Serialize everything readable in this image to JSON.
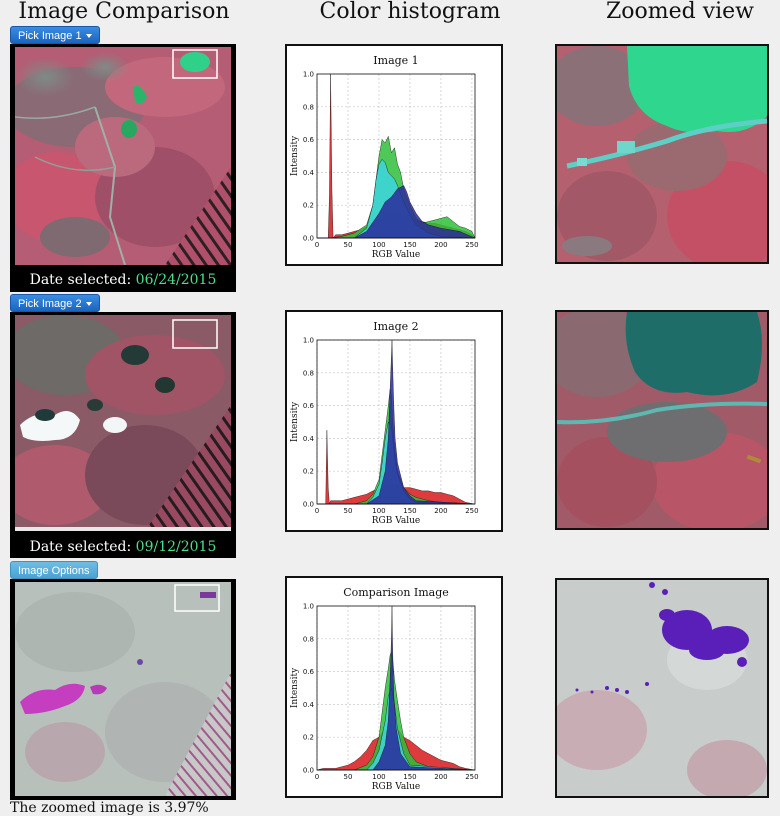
{
  "headers": {
    "comparison": "Image Comparison",
    "histogram": "Color histogram",
    "zoom": "Zoomed view"
  },
  "buttons": {
    "pick1": "Pick Image 1",
    "pick2": "Pick Image 2",
    "options": "Image Options"
  },
  "image1": {
    "date_label": "Date selected:",
    "date_value": "06/24/2015"
  },
  "image2": {
    "date_label": "Date selected:",
    "date_value": "09/12/2015"
  },
  "histograms": [
    {
      "chart_data": {
        "type": "line",
        "title": "Image 1",
        "xlabel": "RGB Value",
        "ylabel": "Intensity",
        "xlim": [
          0,
          255
        ],
        "ylim": [
          0,
          1.0
        ],
        "xticks": [
          0,
          50,
          100,
          150,
          200,
          250
        ],
        "yticks": [
          0.0,
          0.2,
          0.4,
          0.6,
          0.8,
          1.0
        ],
        "series": [
          {
            "color": "#d7191c",
            "x": [
              0,
              10,
              18,
              20,
              22,
              24,
              26,
              30,
              40,
              50,
              60,
              70,
              80,
              90,
              100,
              110,
              120,
              130,
              140,
              150,
              160,
              170,
              180,
              190,
              200,
              210,
              220,
              230,
              240,
              250,
              255
            ],
            "y": [
              0,
              0,
              0,
              0.25,
              1.0,
              0.3,
              0,
              0.02,
              0.02,
              0.03,
              0.04,
              0.05,
              0.07,
              0.09,
              0.12,
              0.14,
              0.15,
              0.14,
              0.13,
              0.12,
              0.11,
              0.1,
              0.09,
              0.09,
              0.08,
              0.07,
              0.06,
              0.05,
              0.04,
              0.02,
              0
            ]
          },
          {
            "color": "#2fbf3a",
            "x": [
              0,
              20,
              40,
              60,
              80,
              90,
              95,
              100,
              105,
              110,
              115,
              120,
              125,
              130,
              135,
              140,
              150,
              160,
              170,
              180,
              190,
              200,
              210,
              220,
              230,
              240,
              250,
              255
            ],
            "y": [
              0,
              0,
              0.01,
              0.03,
              0.08,
              0.2,
              0.35,
              0.5,
              0.6,
              0.58,
              0.62,
              0.52,
              0.55,
              0.45,
              0.4,
              0.3,
              0.2,
              0.12,
              0.09,
              0.1,
              0.11,
              0.12,
              0.13,
              0.1,
              0.07,
              0.06,
              0.04,
              0
            ]
          },
          {
            "color": "#3cd6e0",
            "x": [
              0,
              60,
              80,
              90,
              95,
              100,
              105,
              110,
              115,
              120,
              125,
              130,
              140,
              150,
              160,
              180,
              200,
              255
            ],
            "y": [
              0,
              0,
              0.06,
              0.2,
              0.35,
              0.45,
              0.48,
              0.46,
              0.4,
              0.38,
              0.36,
              0.32,
              0.22,
              0.14,
              0.08,
              0.03,
              0.01,
              0
            ]
          },
          {
            "color": "#2a2a9a",
            "x": [
              0,
              60,
              80,
              100,
              110,
              120,
              130,
              140,
              145,
              150,
              160,
              170,
              180,
              200,
              230,
              255
            ],
            "y": [
              0,
              0,
              0.04,
              0.15,
              0.22,
              0.25,
              0.3,
              0.32,
              0.28,
              0.22,
              0.15,
              0.1,
              0.08,
              0.06,
              0.04,
              0
            ]
          }
        ]
      }
    },
    {
      "chart_data": {
        "type": "line",
        "title": "Image 2",
        "xlabel": "RGB Value",
        "ylabel": "Intensity",
        "xlim": [
          0,
          255
        ],
        "ylim": [
          0,
          1.0
        ],
        "xticks": [
          0,
          50,
          100,
          150,
          200,
          250
        ],
        "yticks": [
          0.0,
          0.2,
          0.4,
          0.6,
          0.8,
          1.0
        ],
        "series": [
          {
            "color": "#d7191c",
            "x": [
              0,
              10,
              14,
              16,
              18,
              20,
              22,
              30,
              40,
              60,
              80,
              90,
              100,
              110,
              120,
              130,
              140,
              150,
              160,
              170,
              180,
              190,
              200,
              210,
              220,
              230,
              240,
              255
            ],
            "y": [
              0,
              0,
              0,
              0.45,
              0.1,
              0,
              0.02,
              0.02,
              0.02,
              0.04,
              0.06,
              0.08,
              0.09,
              0.1,
              0.11,
              0.12,
              0.1,
              0.1,
              0.09,
              0.08,
              0.08,
              0.07,
              0.07,
              0.06,
              0.05,
              0.03,
              0.01,
              0
            ]
          },
          {
            "color": "#2fbf3a",
            "x": [
              0,
              60,
              80,
              90,
              100,
              105,
              110,
              115,
              118,
              120,
              122,
              125,
              130,
              140,
              150,
              160,
              180,
              200,
              255
            ],
            "y": [
              0,
              0,
              0.02,
              0.06,
              0.15,
              0.3,
              0.45,
              0.6,
              0.7,
              0.66,
              0.5,
              0.35,
              0.2,
              0.1,
              0.06,
              0.04,
              0.02,
              0.01,
              0
            ]
          },
          {
            "color": "#3cd6e0",
            "x": [
              0,
              80,
              90,
              100,
              105,
              110,
              115,
              120,
              125,
              130,
              140,
              150,
              160,
              255
            ],
            "y": [
              0,
              0,
              0.04,
              0.12,
              0.25,
              0.4,
              0.5,
              0.48,
              0.3,
              0.18,
              0.08,
              0.03,
              0.01,
              0
            ]
          },
          {
            "color": "#2a2a9a",
            "x": [
              0,
              80,
              100,
              110,
              115,
              118,
              120,
              121,
              122,
              124,
              126,
              130,
              140,
              150,
              160,
              255
            ],
            "y": [
              0,
              0,
              0.05,
              0.2,
              0.4,
              0.7,
              0.9,
              1.0,
              0.85,
              0.6,
              0.4,
              0.25,
              0.1,
              0.05,
              0.02,
              0
            ]
          }
        ]
      }
    },
    {
      "chart_data": {
        "type": "line",
        "title": "Comparison Image",
        "xlabel": "RGB Value",
        "ylabel": "Intensity",
        "xlim": [
          0,
          255
        ],
        "ylim": [
          0,
          1.0
        ],
        "xticks": [
          0,
          50,
          100,
          150,
          200,
          250
        ],
        "yticks": [
          0.0,
          0.2,
          0.4,
          0.6,
          0.8,
          1.0
        ],
        "series": [
          {
            "color": "#d7191c",
            "x": [
              0,
              10,
              20,
              30,
              40,
              50,
              60,
              70,
              80,
              90,
              100,
              110,
              120,
              130,
              140,
              150,
              160,
              170,
              180,
              190,
              200,
              210,
              220,
              230,
              240,
              255
            ],
            "y": [
              0,
              0.01,
              0.01,
              0.01,
              0.02,
              0.03,
              0.05,
              0.08,
              0.12,
              0.18,
              0.2,
              0.25,
              0.28,
              0.25,
              0.2,
              0.18,
              0.15,
              0.12,
              0.1,
              0.08,
              0.06,
              0.05,
              0.04,
              0.02,
              0.01,
              0
            ]
          },
          {
            "color": "#2fbf3a",
            "x": [
              0,
              60,
              80,
              90,
              100,
              105,
              110,
              115,
              118,
              120,
              122,
              125,
              130,
              135,
              140,
              150,
              160,
              180,
              200,
              255
            ],
            "y": [
              0,
              0,
              0.03,
              0.08,
              0.2,
              0.35,
              0.5,
              0.62,
              0.7,
              0.72,
              0.68,
              0.55,
              0.42,
              0.3,
              0.2,
              0.1,
              0.05,
              0.02,
              0.01,
              0
            ]
          },
          {
            "color": "#3cd6e0",
            "x": [
              0,
              80,
              90,
              100,
              110,
              115,
              120,
              125,
              130,
              140,
              150,
              255
            ],
            "y": [
              0,
              0,
              0.04,
              0.12,
              0.3,
              0.45,
              0.5,
              0.4,
              0.25,
              0.1,
              0.03,
              0
            ]
          },
          {
            "color": "#2a2a9a",
            "x": [
              0,
              90,
              100,
              110,
              115,
              118,
              120,
              121,
              122,
              124,
              128,
              135,
              150,
              255
            ],
            "y": [
              0,
              0,
              0.05,
              0.15,
              0.3,
              0.55,
              0.8,
              1.0,
              0.75,
              0.45,
              0.25,
              0.1,
              0.02,
              0
            ]
          }
        ]
      }
    }
  ],
  "footer_text": "The zoomed image is 3.97%"
}
